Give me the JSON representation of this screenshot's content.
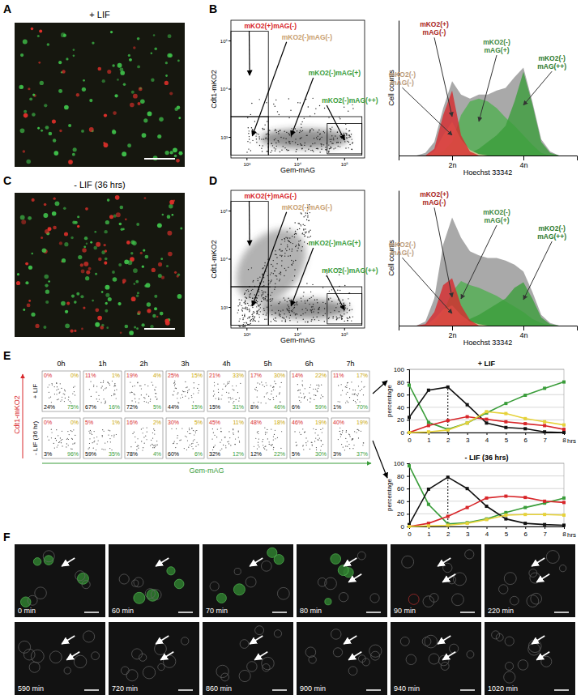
{
  "panel_labels": [
    "A",
    "B",
    "C",
    "D",
    "E",
    "F"
  ],
  "images": [
    {
      "condition": "+ LIF"
    },
    {
      "condition": "- LIF (36 hrs)"
    }
  ],
  "flow": {
    "y_label": "Cdt1-mKO2",
    "x_label": "Gem-mAG",
    "x_ticks": [
      "10³",
      "10⁴",
      "10⁵"
    ],
    "y_ticks": [
      "10³",
      "10⁴",
      "10⁵"
    ],
    "gates": [
      "mKO2(+)mAG(-)",
      "mKO2(-)mAG(-)",
      "mKO2(-)mAG(+)",
      "mKO2(-)mAG(++)"
    ]
  },
  "chart_data": [
    {
      "type": "area",
      "x_label": "Hoechst 33342",
      "y_label": "Cell counts",
      "x": [
        10,
        15,
        20,
        25,
        30,
        35,
        40,
        45,
        50,
        55,
        60,
        65,
        70,
        75,
        80,
        85,
        90
      ],
      "xlim": [
        0,
        100
      ],
      "ylim": [
        0,
        100
      ],
      "xticks": [
        {
          "value": 30,
          "label": "2n"
        },
        {
          "value": 70,
          "label": "4n"
        }
      ],
      "tick_labels": "x",
      "series": [
        {
          "color": "#a9a9a9",
          "values": [
            0,
            2,
            10,
            35,
            55,
            45,
            42,
            45,
            45,
            48,
            50,
            58,
            65,
            40,
            12,
            3,
            0
          ]
        },
        {
          "name": "mKO2(-) mAG(+)",
          "color": "#4fb04f",
          "values": [
            0,
            0,
            1,
            3,
            10,
            30,
            40,
            42,
            40,
            35,
            28,
            22,
            15,
            8,
            2,
            0,
            0
          ]
        },
        {
          "name": "mKO2(-) mAG(++)",
          "color": "#3a9d3a",
          "values": [
            0,
            0,
            0,
            0,
            0,
            0,
            2,
            5,
            10,
            15,
            22,
            40,
            62,
            38,
            10,
            2,
            0
          ]
        },
        {
          "name": "mKO2(-) mAG(-)",
          "color": "#f0c8a0",
          "values": [
            0,
            0,
            3,
            15,
            25,
            12,
            4,
            1,
            0,
            0,
            0,
            0,
            0,
            0,
            0,
            0,
            0
          ]
        },
        {
          "name": "mKO2(+) mAG(-)",
          "color": "#d8262a",
          "values": [
            0,
            0,
            5,
            30,
            48,
            15,
            3,
            0,
            0,
            0,
            0,
            0,
            0,
            0,
            0,
            0,
            0
          ]
        }
      ]
    },
    {
      "type": "area",
      "x_label": "Hoechst 33342",
      "y_label": "Cell counts",
      "x": [
        10,
        15,
        20,
        25,
        30,
        35,
        40,
        45,
        50,
        55,
        60,
        65,
        70,
        75,
        80,
        85,
        90
      ],
      "xlim": [
        0,
        100
      ],
      "ylim": [
        0,
        100
      ],
      "xticks": [
        {
          "value": 30,
          "label": "2n"
        },
        {
          "value": 70,
          "label": "4n"
        }
      ],
      "tick_labels": "x",
      "series": [
        {
          "color": "#a9a9a9",
          "values": [
            0,
            3,
            20,
            60,
            80,
            65,
            55,
            52,
            50,
            50,
            48,
            45,
            40,
            25,
            8,
            2,
            0
          ]
        },
        {
          "name": "mKO2(-) mAG(+)",
          "color": "#4fb04f",
          "values": [
            0,
            0,
            2,
            10,
            25,
            33,
            30,
            28,
            25,
            22,
            18,
            14,
            10,
            5,
            2,
            0,
            0
          ]
        },
        {
          "name": "mKO2(-) mAG(++)",
          "color": "#3a9d3a",
          "values": [
            0,
            0,
            0,
            0,
            0,
            2,
            5,
            8,
            12,
            16,
            20,
            28,
            32,
            20,
            6,
            1,
            0
          ]
        },
        {
          "name": "mKO2(-) mAG(-)",
          "color": "#f0c8a0",
          "values": [
            0,
            0,
            5,
            12,
            15,
            8,
            3,
            1,
            0,
            0,
            0,
            0,
            0,
            0,
            0,
            0,
            0
          ]
        },
        {
          "name": "mKO2(+) mAG(-)",
          "color": "#d8262a",
          "values": [
            0,
            1,
            10,
            30,
            35,
            15,
            4,
            0,
            0,
            0,
            0,
            0,
            0,
            0,
            0,
            0,
            0
          ]
        }
      ]
    },
    {
      "type": "line",
      "title": "+ LIF",
      "x_label": "hrs",
      "y_label": "percentage",
      "x": [
        0,
        1,
        2,
        3,
        4,
        5,
        6,
        7,
        8
      ],
      "xlim": [
        0,
        8
      ],
      "ylim": [
        0,
        100
      ],
      "xticks": [
        0,
        1,
        2,
        3,
        4,
        5,
        6,
        7,
        8
      ],
      "yticks": [
        0,
        20,
        40,
        60,
        80,
        100
      ],
      "grid": true,
      "marker": "square",
      "reference": {
        "x": 2,
        "y": 72
      },
      "series": [
        {
          "color": "#3a9d3a",
          "values": [
            75,
            16,
            5,
            15,
            31,
            46,
            59,
            70,
            80
          ]
        },
        {
          "color": "#111111",
          "values": [
            24,
            67,
            72,
            44,
            15,
            8,
            6,
            1,
            0
          ]
        },
        {
          "color": "#d8262a",
          "values": [
            0,
            11,
            19,
            25,
            21,
            17,
            14,
            11,
            5
          ]
        },
        {
          "color": "#e6d23a",
          "values": [
            0,
            1,
            4,
            15,
            33,
            30,
            22,
            17,
            12
          ]
        }
      ]
    },
    {
      "type": "line",
      "title": "- LIF (36 hrs)",
      "x_label": "hrs",
      "y_label": "percentage",
      "x": [
        0,
        1,
        2,
        3,
        4,
        5,
        6,
        7,
        8
      ],
      "xlim": [
        0,
        8
      ],
      "ylim": [
        0,
        100
      ],
      "xticks": [
        0,
        1,
        2,
        3,
        4,
        5,
        6,
        7,
        8
      ],
      "yticks": [
        0,
        20,
        40,
        60,
        80,
        100
      ],
      "grid": true,
      "marker": "square",
      "reference": {
        "x": 2,
        "y": 78
      },
      "series": [
        {
          "color": "#3a9d3a",
          "values": [
            96,
            35,
            4,
            6,
            12,
            22,
            30,
            37,
            45
          ]
        },
        {
          "color": "#111111",
          "values": [
            3,
            59,
            78,
            60,
            32,
            12,
            5,
            3,
            2
          ]
        },
        {
          "color": "#d8262a",
          "values": [
            0,
            5,
            16,
            30,
            45,
            48,
            46,
            40,
            38
          ]
        },
        {
          "color": "#e6d23a",
          "values": [
            0,
            1,
            2,
            5,
            11,
            18,
            19,
            19,
            18
          ]
        }
      ]
    }
  ],
  "cell_cycle": {
    "y_label": "Cdt1-mKO2",
    "x_label": "Gem-mAG",
    "times": [
      "0h",
      "1h",
      "2h",
      "3h",
      "4h",
      "5h",
      "6h",
      "7h"
    ],
    "rows": [
      {
        "label": "+ LIF",
        "cells": [
          [
            "0%",
            "0%",
            "24%",
            "75%"
          ],
          [
            "11%",
            "1%",
            "67%",
            "16%"
          ],
          [
            "19%",
            "4%",
            "72%",
            "5%"
          ],
          [
            "25%",
            "15%",
            "44%",
            "15%"
          ],
          [
            "21%",
            "33%",
            "15%",
            "31%"
          ],
          [
            "17%",
            "30%",
            "8%",
            "46%"
          ],
          [
            "14%",
            "22%",
            "6%",
            "59%"
          ],
          [
            "11%",
            "17%",
            "1%",
            "70%"
          ]
        ]
      },
      {
        "label": "- LIF (36 hr)",
        "cells": [
          [
            "0%",
            "0%",
            "3%",
            "96%"
          ],
          [
            "5%",
            "1%",
            "59%",
            "35%"
          ],
          [
            "16%",
            "2%",
            "78%",
            "4%"
          ],
          [
            "30%",
            "5%",
            "60%",
            "6%"
          ],
          [
            "45%",
            "11%",
            "32%",
            "12%"
          ],
          [
            "48%",
            "18%",
            "12%",
            "22%"
          ],
          [
            "46%",
            "19%",
            "5%",
            "30%"
          ],
          [
            "40%",
            "19%",
            "3%",
            "37%"
          ]
        ]
      }
    ]
  },
  "timelapse": {
    "frames": [
      "0 min",
      "60 min",
      "70 min",
      "80 min",
      "90 min",
      "220 min",
      "590 min",
      "720 min",
      "860 min",
      "900 min",
      "940 min",
      "1020 min"
    ]
  }
}
